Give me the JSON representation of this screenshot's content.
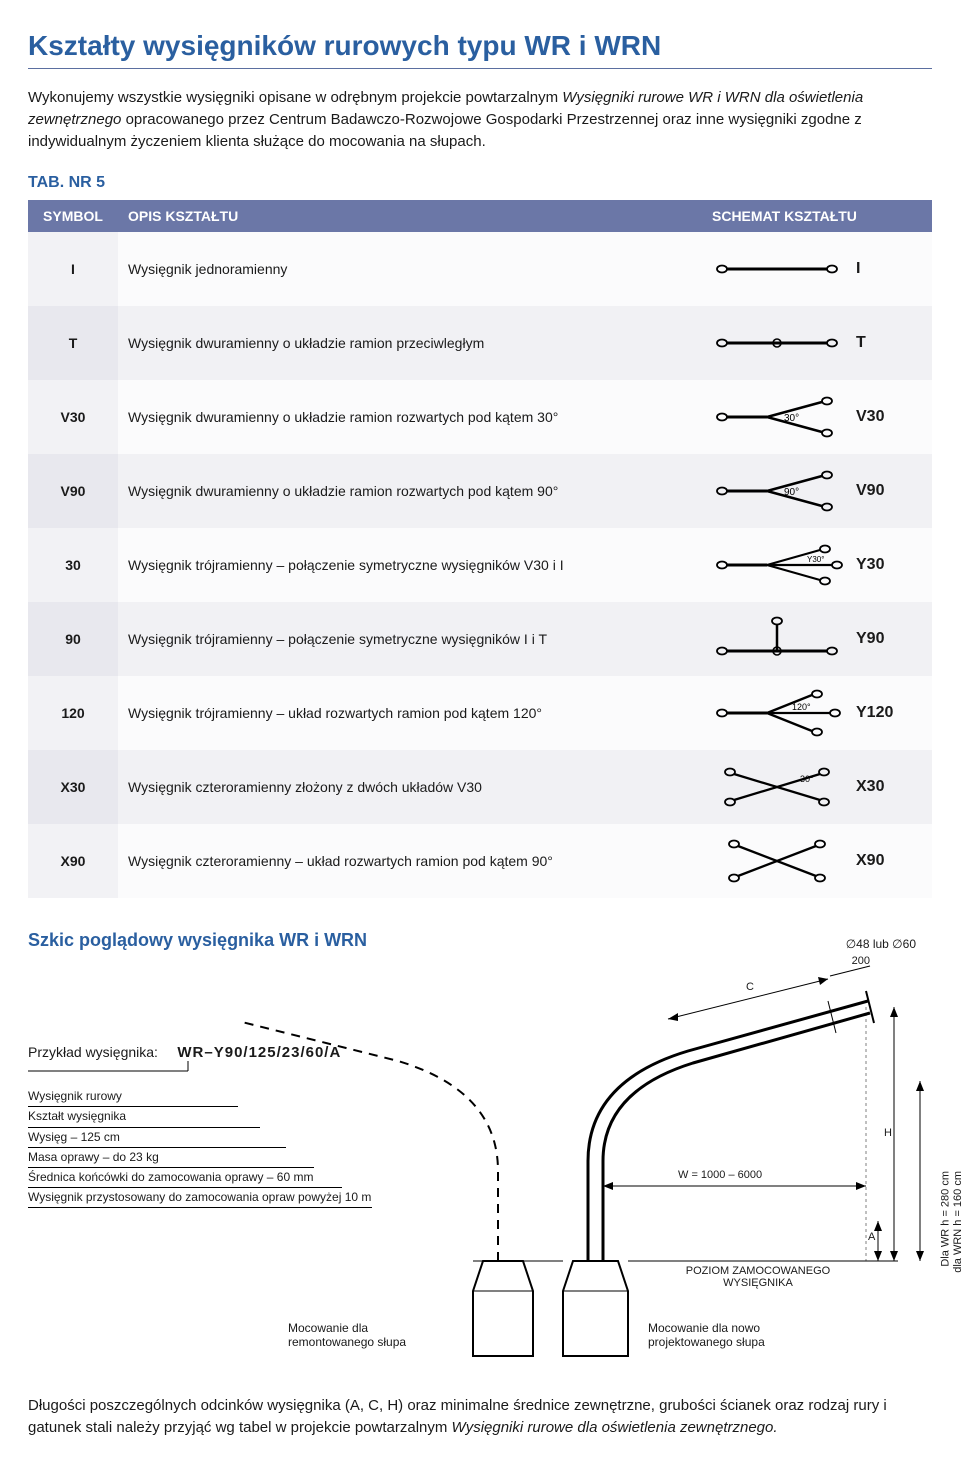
{
  "colors": {
    "title": "#2a5fa0",
    "underline": "#5b6fa0",
    "tab_label": "#2a5fa0",
    "table_header_bg": "#6b77a7",
    "table_header_text": "#ffffff",
    "row_odd_sym": "#f2f2f5",
    "row_even_sym": "#e8e8ee",
    "text": "#1a1a1a",
    "watermark": "#ebeef3"
  },
  "title": "Kształty wysięgników rurowych typu WR i WRN",
  "intro": {
    "pre": "Wykonujemy wszystkie wysięgniki opisane w odrębnym projekcie powtarzalnym ",
    "italic": "Wysięgniki rurowe WR i WRN dla oświetlenia zewnętrznego",
    "post": " opracowanego przez Centrum Badawczo-Rozwojowe Gospodarki Przestrzennej oraz inne wysięgniki zgodne z indywidualnym życzeniem klienta służące do mocowania na słupach."
  },
  "tab_label": "TAB. NR 5",
  "table": {
    "headers": [
      "SYMBOL",
      "OPIS KSZTAŁTU",
      "SCHEMAT KSZTAŁTU"
    ],
    "rows": [
      {
        "sym": "I",
        "desc": "Wysięgnik jednoramienny",
        "schLabel": "I",
        "schType": "I",
        "angle": ""
      },
      {
        "sym": "T",
        "desc": "Wysięgnik dwuramienny o układzie ramion przeciwległym",
        "schLabel": "T",
        "schType": "T",
        "angle": ""
      },
      {
        "sym": "V30",
        "desc": "Wysięgnik dwuramienny o układzie ramion rozwartych pod kątem 30°",
        "schLabel": "V30",
        "schType": "V",
        "angle": "30°"
      },
      {
        "sym": "V90",
        "desc": "Wysięgnik dwuramienny o układzie ramion rozwartych pod kątem 90°",
        "schLabel": "V90",
        "schType": "V",
        "angle": "90°"
      },
      {
        "sym": "30",
        "desc": "Wysięgnik trójramienny – połączenie symetryczne wysięgników V30 i I",
        "schLabel": "Y30",
        "schType": "Y3",
        "angle": "Y30°"
      },
      {
        "sym": "90",
        "desc": "Wysięgnik trójramienny – połączenie symetryczne wysięgników I i T",
        "schLabel": "Y90",
        "schType": "Y9",
        "angle": ""
      },
      {
        "sym": "120",
        "desc": "Wysięgnik trójramienny – układ rozwartych ramion pod kątem 120°",
        "schLabel": "Y120",
        "schType": "Y12",
        "angle": "120°"
      },
      {
        "sym": "X30",
        "desc": "Wysięgnik czteroramienny złożony z dwóch układów V30",
        "schLabel": "X30",
        "schType": "X3",
        "angle": "30°"
      },
      {
        "sym": "X90",
        "desc": "Wysięgnik czteroramienny – układ rozwartych ramion pod kątem 90°",
        "schLabel": "X90",
        "schType": "X9",
        "angle": ""
      }
    ]
  },
  "sketch": {
    "title": "Szkic poglądowy wysięgnika WR i WRN",
    "dim_top": "∅48 lub ∅60",
    "dim_200": "200",
    "dim_C": "C",
    "dim_W": "W = 1000 – 6000",
    "dim_H": "H",
    "dim_A": "A",
    "dim_side1": "Dla WR h = 280 cm",
    "dim_side2": "dla WRN h = 160 cm",
    "level_label": "POZIOM ZAMOCOWANEGO WYSIĘGNIKA",
    "mount_left": "Mocowanie dla remontowanego słupa",
    "mount_right": "Mocowanie dla nowo projektowanego słupa"
  },
  "example": {
    "header": "Przykład wysięgnika:",
    "code": "WR–Y90/125/23/60/A",
    "lines": [
      "Wysięgnik rurowy",
      "Kształt wysięgnika",
      "Wysięg – 125 cm",
      "Masa oprawy – do 23 kg",
      "Średnica końcówki do zamocowania oprawy – 60 mm",
      "Wysięgnik przystosowany do zamocowania opraw powyżej 10 m"
    ]
  },
  "footer": {
    "pre": "Długości poszczególnych odcinków wysięgnika (A, C, H) oraz minimalne średnice zewnętrzne, grubości ścianek oraz rodzaj rury i gatunek stali należy przyjąć wg tabel w projekcie powtarzalnym ",
    "italic": "Wysięgniki rurowe dla oświetlenia zewnętrznego.",
    "post": ""
  }
}
